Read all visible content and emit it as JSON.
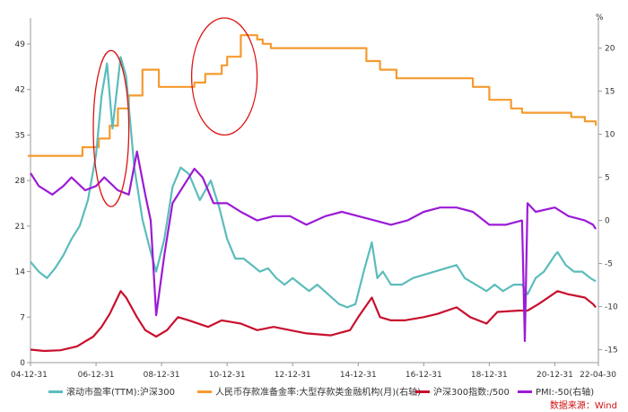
{
  "chart_data": {
    "type": "line",
    "title": "",
    "right_axis_unit": "%",
    "x_ticks": [
      "04-12-31",
      "06-12-31",
      "08-12-31",
      "10-12-31",
      "12-12-31",
      "14-12-31",
      "16-12-31",
      "18-12-31",
      "20-12-31",
      "22-04-30"
    ],
    "xlim": [
      "2004-12-31",
      "2022-04-30"
    ],
    "left_axis": {
      "ticks": [
        0,
        7,
        14,
        21,
        28,
        35,
        42,
        49
      ],
      "ylim": [
        0,
        53
      ]
    },
    "right_axis": {
      "ticks": [
        -15,
        -10,
        -5,
        0,
        5,
        10,
        15,
        20
      ],
      "ylim": [
        -16.5,
        23.5
      ]
    },
    "grid": false,
    "legend_position": "bottom",
    "annotations": [
      {
        "shape": "ellipse",
        "color": "#dd1111",
        "around": "2006-12 to 2008-01"
      },
      {
        "shape": "ellipse",
        "color": "#dd1111",
        "around": "2009-12 to 2011-12"
      }
    ],
    "series": [
      {
        "name": "滚动市盈率(TTM):沪深300",
        "axis": "left",
        "color": "#5bbcbc",
        "x": [
          "2005-01",
          "2005-04",
          "2005-07",
          "2005-10",
          "2006-01",
          "2006-04",
          "2006-07",
          "2006-10",
          "2007-01",
          "2007-03",
          "2007-05",
          "2007-07",
          "2007-10",
          "2007-12",
          "2008-03",
          "2008-06",
          "2008-09",
          "2008-11",
          "2009-02",
          "2009-05",
          "2009-08",
          "2009-11",
          "2010-03",
          "2010-07",
          "2010-10",
          "2011-01",
          "2011-04",
          "2011-07",
          "2011-10",
          "2012-01",
          "2012-04",
          "2012-07",
          "2012-10",
          "2013-01",
          "2013-04",
          "2013-07",
          "2013-10",
          "2014-02",
          "2014-06",
          "2014-09",
          "2014-12",
          "2015-03",
          "2015-06",
          "2015-08",
          "2015-10",
          "2016-01",
          "2016-05",
          "2016-09",
          "2017-01",
          "2017-05",
          "2017-09",
          "2018-01",
          "2018-04",
          "2018-08",
          "2018-12",
          "2019-03",
          "2019-06",
          "2019-10",
          "2020-01",
          "2020-03",
          "2020-06",
          "2020-09",
          "2021-01",
          "2021-02",
          "2021-05",
          "2021-08",
          "2021-11",
          "2022-02",
          "2022-04"
        ],
        "values": [
          15.5,
          14,
          13,
          14.5,
          16.5,
          19,
          21,
          25,
          32,
          41,
          46,
          36,
          47,
          44,
          30,
          22,
          17,
          14,
          19,
          27,
          30,
          29,
          25,
          28,
          24,
          19,
          16,
          16,
          15,
          14,
          14.5,
          13,
          12,
          13,
          12,
          11,
          12,
          10.5,
          9,
          8.5,
          9,
          14,
          18.5,
          13,
          14,
          12,
          12,
          13,
          13.5,
          14,
          14.5,
          15,
          13,
          12,
          11,
          12,
          11,
          12,
          12,
          10.5,
          13,
          14,
          16.5,
          17,
          15,
          14,
          14,
          13,
          12.5
        ]
      },
      {
        "name": "人民币存款准备金率:大型存款类金融机构(月)(右轴)",
        "axis": "right",
        "color": "#f59b2f",
        "x": [
          "2004-12",
          "2006-06",
          "2006-08",
          "2007-02",
          "2007-06",
          "2007-09",
          "2008-01",
          "2008-06",
          "2008-09",
          "2008-12",
          "2009-12",
          "2010-01",
          "2010-05",
          "2010-11",
          "2011-01",
          "2011-06",
          "2011-12",
          "2012-02",
          "2012-05",
          "2015-02",
          "2015-04",
          "2015-09",
          "2016-03",
          "2018-04",
          "2018-07",
          "2019-01",
          "2019-09",
          "2020-01",
          "2021-07",
          "2021-12",
          "2022-04"
        ],
        "values": [
          7.5,
          7.5,
          8.5,
          9.5,
          11,
          13,
          14.5,
          17.5,
          17.5,
          15.5,
          15.5,
          16,
          17,
          18,
          19,
          21.5,
          21,
          20.5,
          20,
          20,
          18.5,
          17.5,
          16.5,
          16.5,
          15.5,
          14,
          13,
          12.5,
          12,
          11.5,
          11
        ]
      },
      {
        "name": "沪深300指数:/500",
        "axis": "left",
        "color": "#c8102e",
        "x": [
          "2005-01",
          "2005-06",
          "2005-12",
          "2006-06",
          "2006-12",
          "2007-03",
          "2007-06",
          "2007-10",
          "2007-12",
          "2008-04",
          "2008-07",
          "2008-11",
          "2009-03",
          "2009-07",
          "2009-11",
          "2010-06",
          "2010-11",
          "2011-06",
          "2011-12",
          "2012-06",
          "2012-12",
          "2013-06",
          "2014-03",
          "2014-10",
          "2015-01",
          "2015-06",
          "2015-09",
          "2016-01",
          "2016-06",
          "2017-01",
          "2017-06",
          "2018-01",
          "2018-06",
          "2018-12",
          "2019-04",
          "2019-12",
          "2020-03",
          "2020-07",
          "2021-02",
          "2021-06",
          "2021-12",
          "2022-03",
          "2022-04"
        ],
        "values": [
          2,
          1.8,
          1.9,
          2.5,
          4,
          5.5,
          7.5,
          11,
          10,
          7,
          5,
          4,
          5,
          7,
          6.5,
          5.5,
          6.5,
          6,
          5,
          5.5,
          5,
          4.5,
          4.2,
          5,
          7,
          10,
          7,
          6.5,
          6.5,
          7,
          7.5,
          8.5,
          7,
          6,
          7.8,
          8,
          8,
          9,
          11,
          10.5,
          10,
          9,
          8.5
        ]
      },
      {
        "name": "PMI:-50(右轴)",
        "axis": "right",
        "color": "#9b1bd6",
        "x": [
          "2005-01",
          "2005-04",
          "2005-09",
          "2006-01",
          "2006-04",
          "2006-09",
          "2007-01",
          "2007-04",
          "2007-09",
          "2008-01",
          "2008-04",
          "2008-07",
          "2008-09",
          "2008-11",
          "2009-02",
          "2009-05",
          "2009-09",
          "2010-01",
          "2010-04",
          "2010-08",
          "2011-01",
          "2011-06",
          "2011-12",
          "2012-06",
          "2012-12",
          "2013-06",
          "2014-01",
          "2014-07",
          "2015-01",
          "2015-07",
          "2016-01",
          "2016-07",
          "2017-01",
          "2017-07",
          "2018-01",
          "2018-07",
          "2019-01",
          "2019-07",
          "2020-01",
          "2020-02",
          "2020-03",
          "2020-06",
          "2021-01",
          "2021-06",
          "2021-12",
          "2022-03",
          "2022-04"
        ],
        "values": [
          5.5,
          4,
          3,
          4,
          5,
          3.5,
          4,
          5,
          3.5,
          3,
          8,
          3,
          0,
          -11,
          -4,
          2,
          4,
          6,
          5,
          2,
          2,
          1,
          0,
          0.5,
          0.5,
          -0.5,
          0.5,
          1,
          0.5,
          0,
          -0.5,
          0,
          1,
          1.5,
          1.5,
          1,
          -0.5,
          -0.5,
          0,
          -14,
          2,
          1,
          1.5,
          0.5,
          0,
          -0.5,
          -1
        ]
      }
    ]
  },
  "legend": {
    "items": [
      {
        "label": "滚动市盈率(TTM):沪深300",
        "color": "#5bbcbc"
      },
      {
        "label": "人民币存款准备金率:大型存款类金融机构(月)(右轴)",
        "color": "#f59b2f"
      },
      {
        "label": "沪深300指数:/500",
        "color": "#c8102e"
      },
      {
        "label": "PMI:-50(右轴)",
        "color": "#9b1bd6"
      }
    ]
  },
  "source": "数据来源：Wind"
}
